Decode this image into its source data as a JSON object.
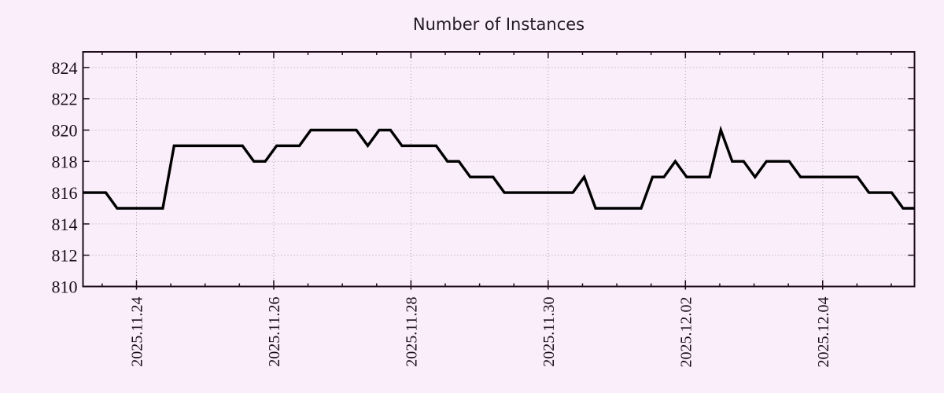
{
  "colors": {
    "background": "#f9eef9",
    "axis": "#1f0d1d",
    "grid": "#aaa2ab",
    "line": "#000000",
    "label": "#170b15",
    "title": "#241b26"
  },
  "chart_data": {
    "type": "line",
    "title": "Number of Instances",
    "xlabel": "",
    "ylabel": "",
    "ylim": [
      810,
      825
    ],
    "y_ticks": [
      810,
      812,
      814,
      816,
      818,
      820,
      822,
      824
    ],
    "x_tick_labels": [
      "2025.11.24",
      "2025.11.26",
      "2025.11.28",
      "2025.11.30",
      "2025.12.02",
      "2025.12.04"
    ],
    "x_major_spacing_days": 2,
    "x_minor_divisions_per_major": 4,
    "grid": "dotted",
    "legend": "none",
    "sample_interval_hours": 4,
    "x_start_estimate": "2025.11.23 ~13:00",
    "x_end_estimate": "2025.12.05 ~09:00",
    "values": [
      816,
      816,
      816,
      815,
      815,
      815,
      815,
      815,
      819,
      819,
      819,
      819,
      819,
      819,
      819,
      818,
      818,
      819,
      819,
      819,
      820,
      820,
      820,
      820,
      820,
      819,
      820,
      820,
      819,
      819,
      819,
      819,
      818,
      818,
      817,
      817,
      817,
      816,
      816,
      816,
      816,
      816,
      816,
      816,
      817,
      815,
      815,
      815,
      815,
      815,
      817,
      817,
      818,
      817,
      817,
      817,
      820,
      818,
      818,
      817,
      818,
      818,
      818,
      817,
      817,
      817,
      817,
      817,
      817,
      816,
      816,
      816,
      815,
      815
    ]
  }
}
